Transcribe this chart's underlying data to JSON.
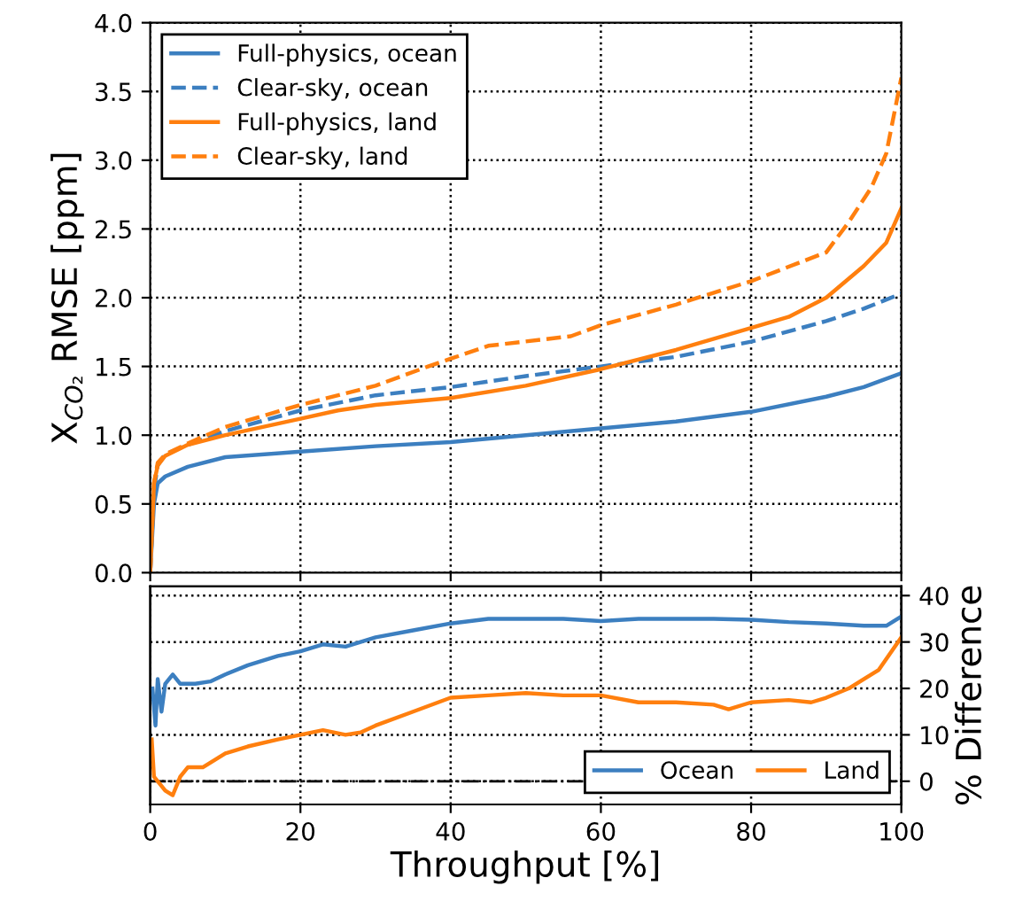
{
  "chart_data": [
    {
      "type": "line",
      "ylabel": "X$_{CO₂}$ RMSE [ppm]",
      "xlim": [
        0,
        100
      ],
      "xticks": [
        0,
        20,
        40,
        60,
        80,
        100
      ],
      "ylim": [
        0,
        4.0
      ],
      "yticks": [
        {
          "value": 0,
          "label": "0.0"
        },
        0.5,
        {
          "value": 1,
          "label": "1.0"
        },
        1.5,
        {
          "value": 2,
          "label": "2.0"
        },
        2.5,
        {
          "value": 3,
          "label": "3.0"
        },
        3.5,
        {
          "value": 4,
          "label": "4.0"
        }
      ],
      "tick_labels": "y",
      "grid": true,
      "legend": "top left",
      "series": [
        {
          "name": "Full-physics, ocean",
          "color": "#3c7fc0",
          "line_style": "solid",
          "x": [
            0,
            0.5,
            1,
            2,
            5,
            10,
            20,
            30,
            40,
            50,
            60,
            70,
            80,
            90,
            95,
            100
          ],
          "values": [
            0,
            0.5,
            0.65,
            0.7,
            0.77,
            0.84,
            0.88,
            0.92,
            0.95,
            1.0,
            1.05,
            1.1,
            1.17,
            1.28,
            1.35,
            1.45
          ]
        },
        {
          "name": "Clear-sky, ocean",
          "color": "#3c7fc0",
          "line_style": "dashed",
          "x": [
            0,
            0.5,
            1,
            2,
            5,
            10,
            20,
            30,
            40,
            50,
            60,
            70,
            80,
            90,
            95,
            100
          ],
          "values": [
            0,
            0.6,
            0.78,
            0.86,
            0.93,
            1.03,
            1.18,
            1.29,
            1.35,
            1.43,
            1.5,
            1.57,
            1.68,
            1.83,
            1.92,
            2.03
          ]
        },
        {
          "name": "Full-physics, land",
          "color": "#ff7f0e",
          "line_style": "solid",
          "x": [
            0,
            0.5,
            1,
            2,
            5,
            10,
            20,
            25,
            30,
            40,
            50,
            60,
            70,
            80,
            85,
            90,
            95,
            98,
            100
          ],
          "values": [
            0,
            0.65,
            0.78,
            0.85,
            0.93,
            1.0,
            1.12,
            1.18,
            1.22,
            1.27,
            1.36,
            1.48,
            1.62,
            1.78,
            1.86,
            2.0,
            2.23,
            2.4,
            2.65
          ]
        },
        {
          "name": "Clear-sky, land",
          "color": "#ff7f0e",
          "line_style": "dashed",
          "x": [
            0,
            0.5,
            1,
            2,
            5,
            10,
            20,
            30,
            37,
            45,
            56,
            60,
            70,
            80,
            90,
            93,
            96,
            98,
            100
          ],
          "values": [
            0,
            0.65,
            0.8,
            0.86,
            0.94,
            1.06,
            1.22,
            1.36,
            1.5,
            1.65,
            1.72,
            1.8,
            1.95,
            2.12,
            2.33,
            2.55,
            2.8,
            3.05,
            3.6
          ]
        }
      ]
    },
    {
      "type": "line",
      "xlabel": "Throughput [%]",
      "y2label": "% Difference",
      "xlim": [
        0,
        100
      ],
      "xticks": [
        0,
        20,
        40,
        60,
        80,
        100
      ],
      "y2lim": [
        -5,
        42
      ],
      "y2ticks": [
        0,
        10,
        20,
        30,
        40
      ],
      "grid": true,
      "legend": "bottom right",
      "ref_lines": [
        {
          "axis": "y2",
          "value": 0,
          "color": "#000000",
          "line_style": "dashdot"
        }
      ],
      "series": [
        {
          "name": "Ocean",
          "color": "#3c7fc0",
          "axis": "y2",
          "x": [
            0.3,
            0.7,
            1,
            1.5,
            2,
            3,
            4,
            6,
            8,
            10,
            13,
            17,
            20,
            23,
            26,
            30,
            35,
            40,
            45,
            50,
            55,
            60,
            65,
            70,
            75,
            80,
            85,
            90,
            95,
            98,
            100
          ],
          "values": [
            20,
            12,
            22,
            15,
            21,
            23,
            21,
            21,
            21.5,
            23,
            25,
            27,
            28,
            29.5,
            29,
            31,
            32.5,
            34,
            35,
            35,
            35,
            34.5,
            35,
            35,
            35,
            34.8,
            34.3,
            34,
            33.5,
            33.5,
            35.5
          ]
        },
        {
          "name": "Land",
          "color": "#ff7f0e",
          "axis": "y2",
          "x": [
            0.2,
            0.5,
            1,
            1.5,
            2,
            3,
            4,
            5,
            7,
            10,
            13,
            17,
            20,
            23,
            26,
            28,
            30,
            35,
            40,
            45,
            50,
            55,
            60,
            65,
            70,
            75,
            77,
            80,
            85,
            88,
            90,
            93,
            97,
            100
          ],
          "values": [
            9,
            1,
            0,
            -1,
            -2,
            -3,
            1,
            3,
            3,
            6,
            7.5,
            9,
            10,
            11,
            10,
            10.5,
            12,
            15,
            18,
            18.5,
            19,
            18.5,
            18.5,
            17,
            17,
            16.5,
            15.5,
            17,
            17.5,
            17,
            18,
            20,
            24,
            31
          ]
        }
      ]
    }
  ]
}
